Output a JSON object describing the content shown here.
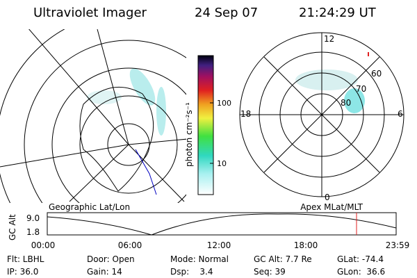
{
  "header": {
    "title": "Ultraviolet Imager",
    "date": "24 Sep 07",
    "time": "21:24:29 UT"
  },
  "colorbar": {
    "label": "photon cm⁻²s⁻¹",
    "ticks": [
      "100",
      "10"
    ]
  },
  "polar": {
    "mlt": [
      "12",
      "18",
      "6",
      "0"
    ],
    "mlat": [
      "60",
      "70",
      "80"
    ]
  },
  "alt_plot": {
    "left_title": "Geographic Lat/Lon",
    "right_title": "Apex MLat/MLT",
    "ylabel": "GC Alt",
    "yticks": [
      "9.0",
      "1.8"
    ],
    "xticks": [
      "00:00",
      "06:00",
      "12:00",
      "18:00",
      "23:59"
    ]
  },
  "footer": {
    "rows": [
      [
        "Flt: LBHL",
        "Door: Open",
        "Mode: Normal",
        "GC Alt: 7.7 Re",
        "GLat: -74.4"
      ],
      [
        "IP: 36.0",
        "Gain: 14",
        "Dsp:    3.4",
        "Seq: 39",
        "GLon:  36.6"
      ]
    ]
  }
}
